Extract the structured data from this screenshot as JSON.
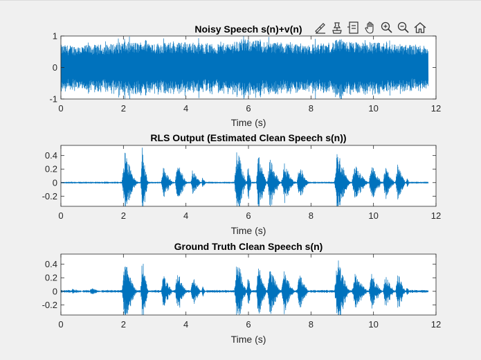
{
  "window": {
    "background": "#f0f0f0"
  },
  "toolbar": {
    "icons": [
      "brush-icon",
      "data-tips-icon",
      "legend-icon",
      "pan-hand-icon",
      "zoom-in-icon",
      "zoom-out-icon",
      "home-icon"
    ]
  },
  "colors": {
    "signal": "#0072bd",
    "axes": "#262626",
    "plot_bg": "#ffffff"
  },
  "chart_data": [
    {
      "type": "line",
      "title": "Noisy Speech s(n)+v(n)",
      "xlabel": "Time (s)",
      "ylabel": "",
      "xlim": [
        0,
        12
      ],
      "ylim": [
        -1,
        1
      ],
      "xticks": [
        "0",
        "2",
        "4",
        "6",
        "8",
        "10",
        "12"
      ],
      "yticks": [
        "1",
        "0",
        "-1"
      ],
      "ytick_values": [
        1,
        0,
        -1
      ],
      "duration": 11.75,
      "envelope": {
        "t": [
          0,
          0.5,
          1,
          1.5,
          2,
          2.5,
          2.7,
          3,
          3.5,
          4,
          4.5,
          5,
          5.5,
          5.8,
          6,
          6.5,
          7,
          7.5,
          8,
          8.5,
          8.9,
          9,
          9.5,
          10,
          10.5,
          11,
          11.5,
          11.75
        ],
        "amp": [
          0.72,
          0.7,
          0.72,
          0.74,
          0.82,
          0.8,
          0.9,
          0.78,
          0.8,
          0.82,
          0.78,
          0.74,
          0.82,
          0.88,
          0.9,
          0.84,
          0.8,
          0.78,
          0.74,
          0.78,
          0.9,
          0.86,
          0.8,
          0.8,
          0.78,
          0.74,
          0.72,
          0.72
        ]
      }
    },
    {
      "type": "line",
      "title": "RLS Output (Estimated Clean Speech s(n))",
      "xlabel": "Time (s)",
      "ylabel": "",
      "xlim": [
        0,
        12
      ],
      "ylim": [
        -0.35,
        0.55
      ],
      "xticks": [
        "0",
        "2",
        "4",
        "6",
        "8",
        "10",
        "12"
      ],
      "yticks": [
        "0.4",
        "0.2",
        "0",
        "-0.2"
      ],
      "ytick_values": [
        0.4,
        0.2,
        0,
        -0.2
      ],
      "duration": 11.75,
      "baseline_noise": 0.012,
      "bursts": [
        {
          "start": 1.95,
          "end": 2.45,
          "peak": 0.45
        },
        {
          "start": 2.55,
          "end": 2.8,
          "peak": 0.55
        },
        {
          "start": 3.2,
          "end": 3.6,
          "peak": 0.24
        },
        {
          "start": 3.65,
          "end": 4.05,
          "peak": 0.3
        },
        {
          "start": 4.15,
          "end": 4.5,
          "peak": 0.22
        },
        {
          "start": 4.5,
          "end": 4.65,
          "peak": 0.08
        },
        {
          "start": 5.55,
          "end": 5.95,
          "peak": 0.55
        },
        {
          "start": 5.95,
          "end": 6.1,
          "peak": 0.3
        },
        {
          "start": 6.25,
          "end": 6.6,
          "peak": 0.42
        },
        {
          "start": 6.6,
          "end": 7.05,
          "peak": 0.36
        },
        {
          "start": 7.05,
          "end": 7.5,
          "peak": 0.3
        },
        {
          "start": 7.55,
          "end": 7.95,
          "peak": 0.27
        },
        {
          "start": 8.75,
          "end": 9.25,
          "peak": 0.5
        },
        {
          "start": 9.3,
          "end": 9.85,
          "peak": 0.26
        },
        {
          "start": 9.85,
          "end": 10.3,
          "peak": 0.26
        },
        {
          "start": 10.3,
          "end": 10.7,
          "peak": 0.24
        },
        {
          "start": 10.7,
          "end": 11.05,
          "peak": 0.28
        },
        {
          "start": 11.05,
          "end": 11.15,
          "peak": 0.1
        }
      ]
    },
    {
      "type": "line",
      "title": "Ground Truth Clean Speech s(n)",
      "xlabel": "Time (s)",
      "ylabel": "",
      "xlim": [
        0,
        12
      ],
      "ylim": [
        -0.35,
        0.55
      ],
      "xticks": [
        "0",
        "2",
        "4",
        "6",
        "8",
        "10",
        "12"
      ],
      "yticks": [
        "0.4",
        "0.2",
        "0",
        "-0.2"
      ],
      "ytick_values": [
        0.4,
        0.2,
        0,
        -0.2
      ],
      "duration": 11.75,
      "baseline_noise": 0.02,
      "bursts": [
        {
          "start": 0.3,
          "end": 0.7,
          "peak": 0.04
        },
        {
          "start": 0.9,
          "end": 1.3,
          "peak": 0.05
        },
        {
          "start": 1.95,
          "end": 2.45,
          "peak": 0.45
        },
        {
          "start": 2.55,
          "end": 2.8,
          "peak": 0.55
        },
        {
          "start": 3.2,
          "end": 3.6,
          "peak": 0.24
        },
        {
          "start": 3.65,
          "end": 4.05,
          "peak": 0.3
        },
        {
          "start": 4.15,
          "end": 4.5,
          "peak": 0.22
        },
        {
          "start": 4.5,
          "end": 4.65,
          "peak": 0.08
        },
        {
          "start": 5.55,
          "end": 5.95,
          "peak": 0.55
        },
        {
          "start": 5.95,
          "end": 6.1,
          "peak": 0.3
        },
        {
          "start": 6.25,
          "end": 6.6,
          "peak": 0.42
        },
        {
          "start": 6.6,
          "end": 7.05,
          "peak": 0.36
        },
        {
          "start": 7.05,
          "end": 7.5,
          "peak": 0.3
        },
        {
          "start": 7.55,
          "end": 7.95,
          "peak": 0.27
        },
        {
          "start": 8.75,
          "end": 9.25,
          "peak": 0.5
        },
        {
          "start": 9.3,
          "end": 9.85,
          "peak": 0.26
        },
        {
          "start": 9.85,
          "end": 10.3,
          "peak": 0.26
        },
        {
          "start": 10.3,
          "end": 10.7,
          "peak": 0.24
        },
        {
          "start": 10.7,
          "end": 11.05,
          "peak": 0.28
        },
        {
          "start": 11.05,
          "end": 11.15,
          "peak": 0.1
        }
      ]
    }
  ]
}
